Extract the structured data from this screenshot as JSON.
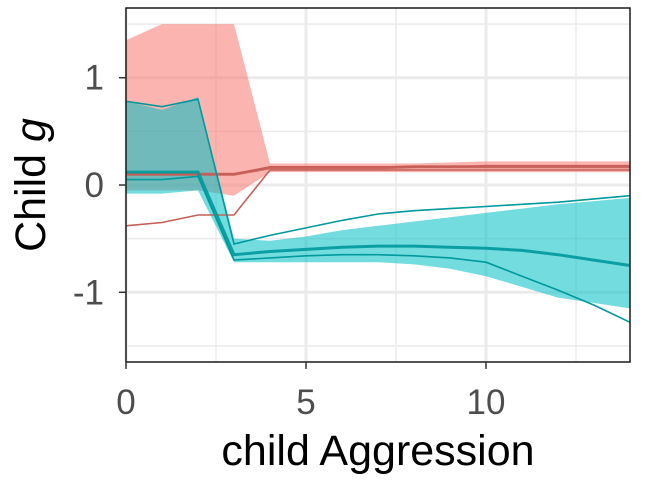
{
  "chart_data": {
    "type": "line",
    "title": "",
    "xlabel": "child Aggression",
    "ylabel": {
      "text": "Child ",
      "italic": "g"
    },
    "xlim": [
      0,
      14
    ],
    "ylim": [
      -1.65,
      1.65
    ],
    "x_ticks": [
      0,
      5,
      10
    ],
    "y_ticks": [
      -1,
      0,
      1
    ],
    "grid": true,
    "legend": "none",
    "series": [
      {
        "color": "#f8766d",
        "x": [
          0,
          1,
          2,
          3,
          4,
          5,
          6,
          7,
          8,
          9,
          10,
          11,
          12,
          13,
          14
        ],
        "band_upper": [
          1.35,
          1.5,
          1.5,
          1.5,
          0.2,
          0.2,
          0.2,
          0.2,
          0.2,
          0.21,
          0.22,
          0.22,
          0.22,
          0.22,
          0.22
        ],
        "band_lower": [
          -0.05,
          -0.05,
          -0.05,
          -0.1,
          0.12,
          0.12,
          0.12,
          0.12,
          0.12,
          0.12,
          0.12,
          0.12,
          0.12,
          0.12,
          0.12
        ],
        "mid": [
          0.1,
          0.1,
          0.1,
          0.1,
          0.16,
          0.16,
          0.16,
          0.16,
          0.17,
          0.17,
          0.17,
          0.17,
          0.17,
          0.17,
          0.17
        ],
        "line_upper": [
          0.1,
          0.1,
          0.1,
          0.1,
          0.17,
          0.17,
          0.17,
          0.17,
          0.17,
          0.17,
          0.18,
          0.18,
          0.18,
          0.18,
          0.18
        ],
        "line_lower": [
          -0.38,
          -0.35,
          -0.28,
          -0.28,
          0.14,
          0.14,
          0.14,
          0.14,
          0.14,
          0.14,
          0.14,
          0.14,
          0.14,
          0.14,
          0.14
        ]
      },
      {
        "color": "#00bfc4",
        "x": [
          0,
          1,
          2,
          3,
          4,
          5,
          6,
          7,
          8,
          9,
          10,
          11,
          12,
          13,
          14
        ],
        "band_upper": [
          0.78,
          0.7,
          0.82,
          -0.5,
          -0.52,
          -0.48,
          -0.42,
          -0.38,
          -0.34,
          -0.3,
          -0.26,
          -0.22,
          -0.18,
          -0.15,
          -0.12
        ],
        "band_lower": [
          -0.08,
          -0.08,
          -0.05,
          -0.72,
          -0.72,
          -0.72,
          -0.72,
          -0.72,
          -0.74,
          -0.78,
          -0.85,
          -0.95,
          -1.05,
          -1.1,
          -1.15
        ],
        "mid": [
          0.12,
          0.12,
          0.12,
          -0.65,
          -0.62,
          -0.6,
          -0.58,
          -0.57,
          -0.57,
          -0.58,
          -0.59,
          -0.61,
          -0.65,
          -0.7,
          -0.75
        ],
        "line_upper": [
          0.78,
          0.73,
          0.8,
          -0.55,
          -0.47,
          -0.4,
          -0.33,
          -0.27,
          -0.24,
          -0.22,
          -0.2,
          -0.18,
          -0.16,
          -0.13,
          -0.1
        ],
        "line_lower": [
          0.05,
          0.05,
          0.08,
          -0.7,
          -0.68,
          -0.66,
          -0.65,
          -0.65,
          -0.66,
          -0.68,
          -0.72,
          -0.85,
          -0.98,
          -1.12,
          -1.28
        ]
      }
    ]
  }
}
